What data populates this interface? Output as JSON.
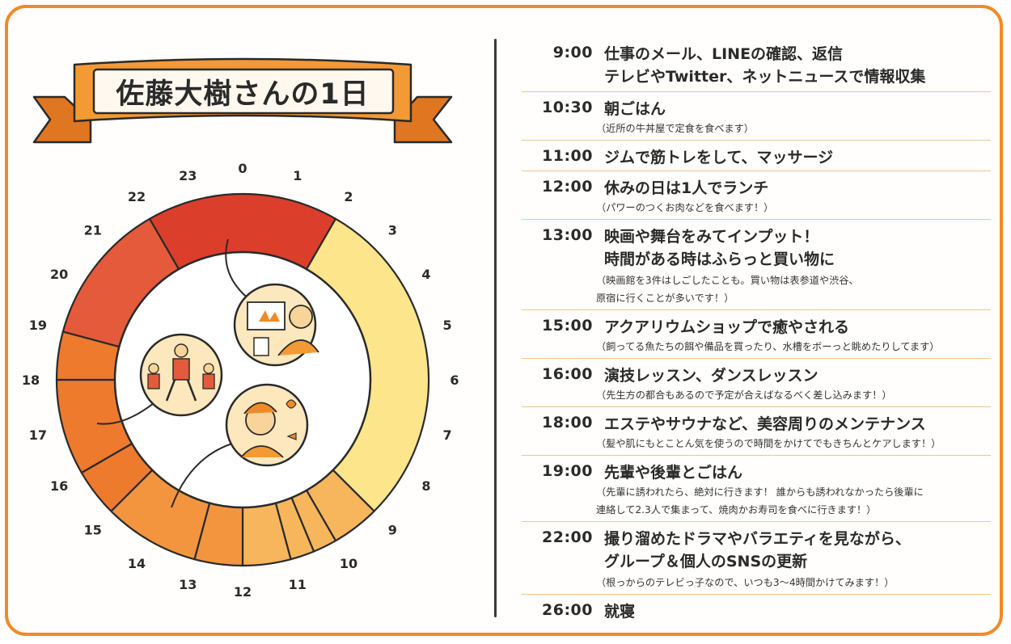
{
  "title": "佐藤大樹さんの1日",
  "clock": {
    "hour_labels": [
      "0",
      "1",
      "2",
      "3",
      "4",
      "5",
      "6",
      "7",
      "8",
      "9",
      "10",
      "11",
      "12",
      "13",
      "14",
      "15",
      "16",
      "17",
      "18",
      "19",
      "20",
      "21",
      "22",
      "23"
    ],
    "colors": {
      "red": "#dc3e2c",
      "red_light": "#e55a3a",
      "orange": "#ee7a2e",
      "orange_light": "#f3953f",
      "amber": "#f7b65c",
      "yellow": "#fde58c",
      "banner": "#f39a34",
      "frame": "#f08a28"
    }
  },
  "schedule": [
    {
      "time": "9:00",
      "lines": [
        "仕事のメール、LINEの確認、返信",
        "テレビやTwitter、ネットニュースで情報収集"
      ],
      "notes": []
    },
    {
      "time": "10:30",
      "lines": [
        "朝ごはん"
      ],
      "notes": [
        "（近所の牛丼屋で定食を食べます）"
      ]
    },
    {
      "time": "11:00",
      "lines": [
        "ジムで筋トレをして、マッサージ"
      ],
      "notes": []
    },
    {
      "time": "12:00",
      "lines": [
        "休みの日は1人でランチ"
      ],
      "notes": [
        "（パワーのつくお肉などを食べます！）"
      ]
    },
    {
      "time": "13:00",
      "lines": [
        "映画や舞台をみてインプット！",
        "時間がある時はふらっと買い物に"
      ],
      "notes": [
        "（映画館を3件はしごしたことも。買い物は表参道や渋谷、",
        "原宿に行くことが多いです！）"
      ]
    },
    {
      "time": "15:00",
      "lines": [
        "アクアリウムショップで癒やされる"
      ],
      "notes": [
        "（飼ってる魚たちの餌や備品を買ったり、水槽をボーっと眺めたりしてます）"
      ]
    },
    {
      "time": "16:00",
      "lines": [
        "演技レッスン、ダンスレッスン"
      ],
      "notes": [
        "（先生方の都合もあるので予定が合えばなるべく差し込みます！）"
      ]
    },
    {
      "time": "18:00",
      "lines": [
        "エステやサウナなど、美容周りのメンテナンス"
      ],
      "notes": [
        "（髪や肌にもとことん気を使うので時間をかけてでもきちんとケアします！）"
      ]
    },
    {
      "time": "19:00",
      "lines": [
        "先輩や後輩とごはん"
      ],
      "notes": [
        "（先輩に誘われたら、絶対に行きます！ 誰からも誘われなかったら後輩に",
        "連絡して2.3人で集まって、焼肉かお寿司を食べに行きます！）"
      ]
    },
    {
      "time": "22:00",
      "lines": [
        "撮り溜めたドラマやバラエティを見ながら、",
        "グループ＆個人のSNSの更新"
      ],
      "notes": [
        "（根っからのテレビっ子なので、いつも3〜4時間かけてみます！）"
      ]
    },
    {
      "time": "26:00",
      "lines": [
        "就寝"
      ],
      "notes": []
    }
  ]
}
